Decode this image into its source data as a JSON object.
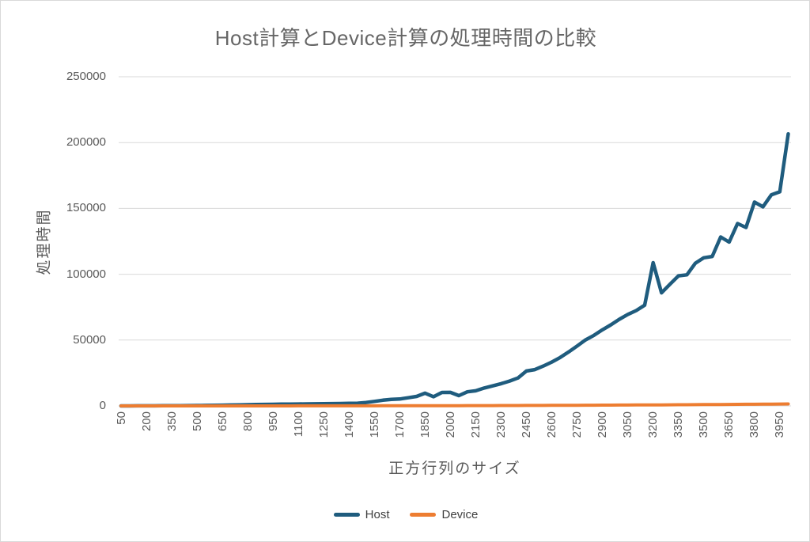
{
  "chart": {
    "title": "Host計算とDevice計算の処理時間の比較",
    "y_axis_title": "処理時間",
    "x_axis_title": "正方行列のサイズ",
    "legend": [
      {
        "label": "Host",
        "color": "#1F5C7E"
      },
      {
        "label": "Device",
        "color": "#ED7D31"
      }
    ],
    "colors": {
      "host_line": "#1F5C7E",
      "device_line": "#ED7D31",
      "gridline": "#D9D9D9",
      "axis_text": "#595959",
      "title_text": "#666666",
      "legend_text": "#404040"
    }
  },
  "chart_data": {
    "type": "line",
    "title": "Host計算とDevice計算の処理時間の比較",
    "xlabel": "正方行列のサイズ",
    "ylabel": "処理時間",
    "ylim": [
      0,
      250000
    ],
    "y_ticks": [
      0,
      50000,
      100000,
      150000,
      200000,
      250000
    ],
    "x_tick_labels": [
      "50",
      "200",
      "350",
      "500",
      "650",
      "800",
      "950",
      "1100",
      "1250",
      "1400",
      "1550",
      "1700",
      "1850",
      "2000",
      "2150",
      "2300",
      "2450",
      "2600",
      "2750",
      "2900",
      "3050",
      "3200",
      "3350",
      "3500",
      "3650",
      "3800",
      "3950"
    ],
    "legend_position": "bottom",
    "grid": "horizontal",
    "x": [
      50,
      100,
      150,
      200,
      250,
      300,
      350,
      400,
      450,
      500,
      550,
      600,
      650,
      700,
      750,
      800,
      850,
      900,
      950,
      1000,
      1050,
      1100,
      1150,
      1200,
      1250,
      1300,
      1350,
      1400,
      1450,
      1500,
      1550,
      1600,
      1650,
      1700,
      1750,
      1800,
      1850,
      1900,
      1950,
      2000,
      2050,
      2100,
      2150,
      2200,
      2250,
      2300,
      2350,
      2400,
      2450,
      2500,
      2550,
      2600,
      2650,
      2700,
      2750,
      2800,
      2850,
      2900,
      2950,
      3000,
      3050,
      3100,
      3150,
      3200,
      3250,
      3300,
      3350,
      3400,
      3450,
      3500,
      3550,
      3600,
      3650,
      3700,
      3750,
      3800,
      3850,
      3900,
      3950,
      4000
    ],
    "series": [
      {
        "name": "Host",
        "color": "#1F5C7E",
        "values": [
          15,
          25,
          40,
          60,
          85,
          115,
          150,
          195,
          250,
          310,
          380,
          460,
          550,
          650,
          770,
          900,
          1020,
          1120,
          1220,
          1300,
          1360,
          1420,
          1480,
          1550,
          1630,
          1720,
          1810,
          1900,
          2050,
          2600,
          3400,
          4300,
          4900,
          5200,
          6200,
          7200,
          9700,
          7000,
          10200,
          10300,
          7800,
          10700,
          11500,
          13600,
          15200,
          16900,
          18900,
          21200,
          26500,
          27600,
          30300,
          33300,
          36800,
          41000,
          45500,
          50100,
          53600,
          57800,
          61600,
          65800,
          69500,
          72400,
          76500,
          108800,
          85900,
          92400,
          98800,
          99600,
          108400,
          112500,
          113500,
          128300,
          124400,
          138500,
          135500,
          154800,
          151200,
          160300,
          162600,
          206600
        ]
      },
      {
        "name": "Device",
        "color": "#ED7D31",
        "values": [
          0,
          0,
          0,
          0,
          0,
          1,
          1,
          1,
          2,
          3,
          4,
          5,
          6,
          8,
          10,
          12,
          14,
          17,
          20,
          23,
          27,
          31,
          36,
          41,
          46,
          51,
          58,
          64,
          71,
          79,
          87,
          96,
          105,
          115,
          126,
          137,
          148,
          161,
          174,
          187,
          202,
          217,
          233,
          250,
          267,
          285,
          304,
          324,
          345,
          366,
          389,
          412,
          436,
          461,
          487,
          514,
          543,
          572,
          602,
          633,
          665,
          698,
          732,
          768,
          804,
          842,
          881,
          921,
          962,
          1005,
          1048,
          1093,
          1140,
          1187,
          1236,
          1286,
          1337,
          1390,
          1444,
          1500
        ]
      }
    ]
  }
}
